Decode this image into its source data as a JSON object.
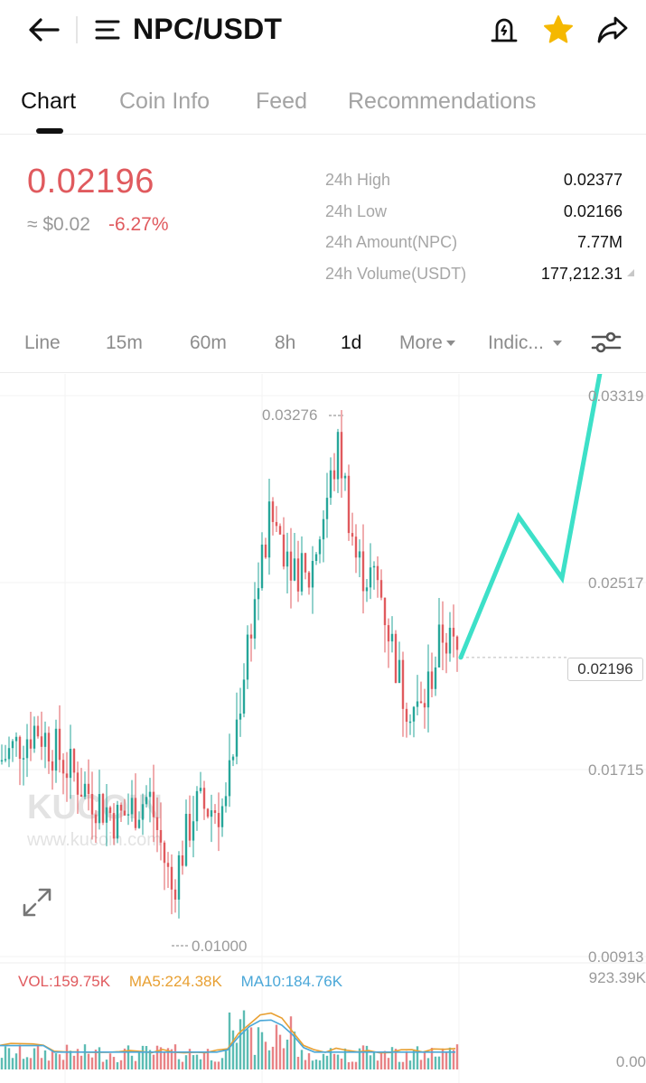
{
  "header": {
    "title": "NPC/USDT",
    "icons": [
      "back-arrow-icon",
      "menu-icon",
      "price-alert-icon",
      "favorite-star-icon",
      "share-icon"
    ],
    "star_color": "#f5b800"
  },
  "tabs": [
    {
      "label": "Chart",
      "active": true
    },
    {
      "label": "Coin Info",
      "active": false
    },
    {
      "label": "Feed",
      "active": false
    },
    {
      "label": "Recommendations",
      "active": false
    }
  ],
  "ticker": {
    "price": "0.02196",
    "fiat": "≈ $0.02",
    "change": "-6.27%",
    "down_color": "#e05a5e",
    "up_color": "#26a69a",
    "stats": [
      {
        "label": "24h High",
        "value": "0.02377"
      },
      {
        "label": "24h Low",
        "value": "0.02166"
      },
      {
        "label": "24h Amount(NPC)",
        "value": "7.77M"
      },
      {
        "label": "24h Volume(USDT)",
        "value": "177,212.31"
      }
    ]
  },
  "intervals": [
    {
      "label": "Line",
      "active": false
    },
    {
      "label": "15m",
      "active": false
    },
    {
      "label": "60m",
      "active": false
    },
    {
      "label": "8h",
      "active": false
    },
    {
      "label": "1d",
      "active": true
    },
    {
      "label": "More",
      "active": false,
      "dropdown": true
    },
    {
      "label": "Indic...",
      "active": false,
      "dropdown": true
    }
  ],
  "chart": {
    "watermark_brand": "KUCOIN",
    "watermark_url": "www.kucoin.com",
    "y_ticks": [
      "0.03319",
      "0.02517",
      "0.01715",
      "0.00913"
    ],
    "y_tick_values": [
      0.03319,
      0.02517,
      0.01715,
      0.00913
    ],
    "high_label": "0.03276",
    "low_label": "0.01000",
    "current_price_tag": "0.02196",
    "current_price": 0.02196,
    "projection_color": "#3de0c8"
  },
  "volume": {
    "vol": "VOL:159.75K",
    "ma5": "MA5:224.38K",
    "ma10": "MA10:184.76K",
    "max_label": "923.39K",
    "zero_label": "0.00"
  }
}
